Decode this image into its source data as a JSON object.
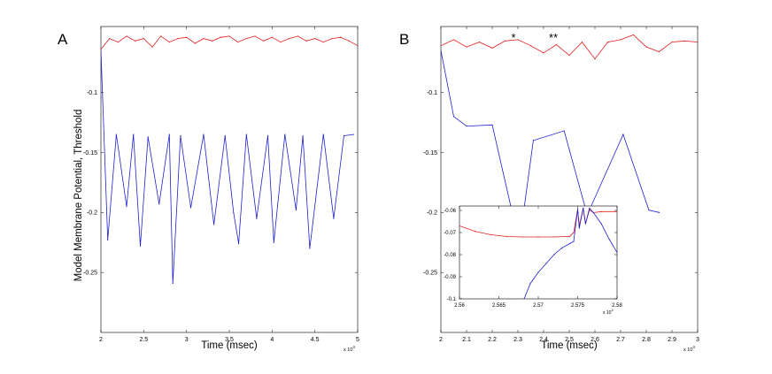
{
  "chart_data": [
    {
      "type": "line",
      "panel_label": "A",
      "ylabel": "Model Membrane Potential, Threshold",
      "xlabel": "Time (msec)",
      "x_multiplier": "x 10",
      "x_multiplier_exp": "4",
      "xlim": [
        2,
        5
      ],
      "ylim": [
        -0.3,
        -0.045
      ],
      "xticks": [
        "2",
        "2.5",
        "3",
        "3.5",
        "4",
        "4.5",
        "5"
      ],
      "xtick_values": [
        2,
        2.5,
        3,
        3.5,
        4,
        4.5,
        5
      ],
      "yticks": [
        "-0.1",
        "-0.15",
        "-0.2",
        "-0.25"
      ],
      "ytick_values": [
        -0.1,
        -0.15,
        -0.2,
        -0.25
      ],
      "series": [
        {
          "color": "#e02020",
          "x": [
            2.0,
            2.1,
            2.2,
            2.3,
            2.4,
            2.5,
            2.6,
            2.7,
            2.8,
            2.9,
            3.0,
            3.1,
            3.2,
            3.3,
            3.4,
            3.5,
            3.6,
            3.7,
            3.8,
            3.9,
            4.0,
            4.1,
            4.2,
            4.3,
            4.4,
            4.5,
            4.6,
            4.7,
            4.8,
            4.9,
            5.0
          ],
          "y": [
            -0.064,
            -0.055,
            -0.058,
            -0.053,
            -0.057,
            -0.055,
            -0.062,
            -0.053,
            -0.058,
            -0.055,
            -0.054,
            -0.059,
            -0.055,
            -0.057,
            -0.054,
            -0.053,
            -0.058,
            -0.055,
            -0.053,
            -0.057,
            -0.054,
            -0.058,
            -0.055,
            -0.053,
            -0.057,
            -0.055,
            -0.058,
            -0.055,
            -0.054,
            -0.057,
            -0.061
          ]
        },
        {
          "color": "#2020d0",
          "x": [
            2.0,
            2.08,
            2.18,
            2.3,
            2.38,
            2.46,
            2.55,
            2.68,
            2.8,
            2.84,
            2.93,
            3.05,
            3.2,
            3.32,
            3.45,
            3.55,
            3.61,
            3.7,
            3.82,
            3.95,
            4.02,
            4.15,
            4.28,
            4.36,
            4.44,
            4.6,
            4.72,
            4.84,
            4.95
          ],
          "y": [
            -0.065,
            -0.223,
            -0.135,
            -0.195,
            -0.135,
            -0.228,
            -0.137,
            -0.193,
            -0.135,
            -0.259,
            -0.136,
            -0.196,
            -0.135,
            -0.21,
            -0.136,
            -0.2,
            -0.226,
            -0.135,
            -0.205,
            -0.136,
            -0.225,
            -0.135,
            -0.198,
            -0.136,
            -0.23,
            -0.135,
            -0.205,
            -0.136,
            -0.135
          ]
        }
      ]
    },
    {
      "type": "line",
      "panel_label": "B",
      "xlabel": "Time (msec)",
      "x_multiplier": "x 10",
      "x_multiplier_exp": "4",
      "xlim": [
        2,
        3
      ],
      "ylim": [
        -0.3,
        -0.045
      ],
      "xticks": [
        "2",
        "2.1",
        "2.2",
        "2.3",
        "2.4",
        "2.5",
        "2.6",
        "2.7",
        "2.8",
        "2.9",
        "3"
      ],
      "xtick_values": [
        2,
        2.1,
        2.2,
        2.3,
        2.4,
        2.5,
        2.6,
        2.7,
        2.8,
        2.9,
        3
      ],
      "yticks": [
        "-0.1",
        "-0.15",
        "-0.2",
        "-0.25"
      ],
      "ytick_values": [
        -0.1,
        -0.15,
        -0.2,
        -0.25
      ],
      "annotations": [
        {
          "text": "*",
          "x": 2.29,
          "y": -0.052
        },
        {
          "text": "**",
          "x": 2.44,
          "y": -0.052
        }
      ],
      "series": [
        {
          "color": "#e02020",
          "x": [
            2.0,
            2.05,
            2.1,
            2.15,
            2.2,
            2.25,
            2.3,
            2.35,
            2.4,
            2.45,
            2.5,
            2.55,
            2.6,
            2.65,
            2.7,
            2.75,
            2.8,
            2.85,
            2.9,
            2.95,
            3.0
          ],
          "y": [
            -0.061,
            -0.056,
            -0.062,
            -0.058,
            -0.063,
            -0.057,
            -0.056,
            -0.061,
            -0.067,
            -0.06,
            -0.069,
            -0.058,
            -0.072,
            -0.058,
            -0.056,
            -0.052,
            -0.062,
            -0.066,
            -0.058,
            -0.057,
            -0.058
          ]
        },
        {
          "color": "#2020d0",
          "x": [
            2.0,
            2.05,
            2.1,
            2.2,
            2.28,
            2.32,
            2.36,
            2.48,
            2.57,
            2.71,
            2.81,
            2.85
          ],
          "y": [
            -0.065,
            -0.12,
            -0.128,
            -0.127,
            -0.202,
            -0.203,
            -0.14,
            -0.132,
            -0.202,
            -0.135,
            -0.198,
            -0.2
          ]
        }
      ],
      "inset": {
        "xlim": [
          2.56,
          2.58
        ],
        "ylim": [
          -0.1,
          -0.058
        ],
        "xticks": [
          "2.56",
          "2.565",
          "2.57",
          "2.575",
          "2.58"
        ],
        "xtick_values": [
          2.56,
          2.565,
          2.57,
          2.575,
          2.58
        ],
        "yticks": [
          "-0.06",
          "-0.07",
          "-0.08",
          "-0.09",
          "-0.1"
        ],
        "ytick_values": [
          -0.06,
          -0.07,
          -0.08,
          -0.09,
          -0.1
        ],
        "x_multiplier": "x 10",
        "x_multiplier_exp": "4",
        "series": [
          {
            "color": "#e02020",
            "x": [
              2.56,
              2.562,
              2.564,
              2.566,
              2.568,
              2.57,
              2.572,
              2.574,
              2.5745,
              2.575,
              2.5752,
              2.5757,
              2.576,
              2.5765,
              2.577,
              2.578,
              2.58
            ],
            "y": [
              -0.067,
              -0.0695,
              -0.071,
              -0.0718,
              -0.072,
              -0.072,
              -0.072,
              -0.0717,
              -0.07,
              -0.0595,
              -0.067,
              -0.059,
              -0.066,
              -0.0597,
              -0.061,
              -0.0605,
              -0.0605
            ]
          },
          {
            "color": "#2020d0",
            "x": [
              2.5682,
              2.569,
              2.57,
              2.571,
              2.572,
              2.573,
              2.574,
              2.5745,
              2.575,
              2.5752,
              2.5757,
              2.576,
              2.5765,
              2.577,
              2.578,
              2.579,
              2.58
            ],
            "y": [
              -0.1,
              -0.093,
              -0.088,
              -0.084,
              -0.08,
              -0.077,
              -0.075,
              -0.074,
              -0.0595,
              -0.068,
              -0.059,
              -0.066,
              -0.059,
              -0.061,
              -0.066,
              -0.073,
              -0.079
            ]
          }
        ]
      }
    }
  ]
}
